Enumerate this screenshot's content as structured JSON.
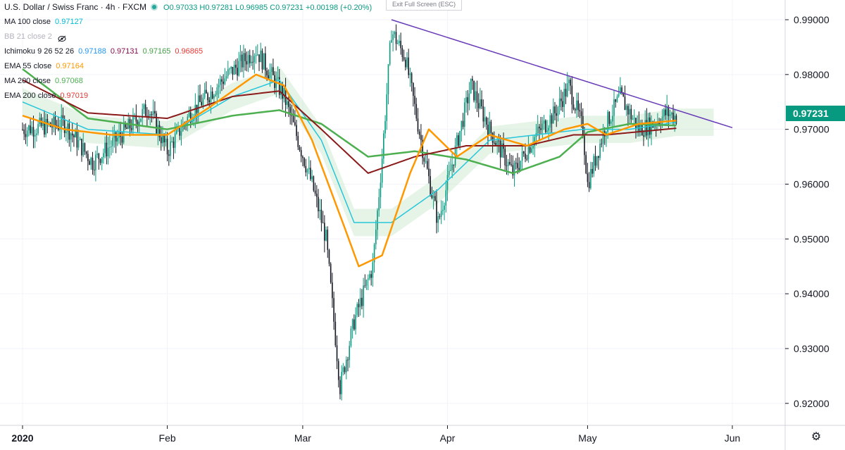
{
  "header": {
    "symbol": "U.S. Dollar / Swiss Franc · 4h · FXCM",
    "open": "O0.97033",
    "high": "H0.97281",
    "low": "L0.96985",
    "close": "C0.97231",
    "change": "+0.00198 (+0.20%)"
  },
  "exit_fullscreen": "Exit Full Screen (ESC)",
  "indicators": [
    {
      "label": "MA 100 close",
      "values": [
        "0.97127"
      ],
      "colors": [
        "#00bcd4"
      ]
    },
    {
      "label": "BB 21 close 2",
      "values": [],
      "colors": []
    },
    {
      "label": "Ichimoku 9 26 52 26",
      "values": [
        "0.97188",
        "0.97131",
        "0.97165",
        "0.96865"
      ],
      "colors": [
        "#2196f3",
        "#880e4f",
        "#43a047",
        "#e53935"
      ]
    },
    {
      "label": "EMA 55 close",
      "values": [
        "0.97164"
      ],
      "colors": [
        "#ff9800"
      ]
    },
    {
      "label": "MA 200 close",
      "values": [
        "0.97068"
      ],
      "colors": [
        "#4caf50"
      ]
    },
    {
      "label": "EMA 200 close",
      "values": [
        "0.97019"
      ],
      "colors": [
        "#e53935"
      ]
    }
  ],
  "last_price": "0.97231",
  "chart_data": {
    "type": "candlestick",
    "y_ticks": [
      "0.99000",
      "0.98000",
      "0.97000",
      "0.96000",
      "0.95000",
      "0.94000",
      "0.93000",
      "0.92000"
    ],
    "ylim": [
      0.9165,
      0.9936
    ],
    "x_ticks": [
      "2020",
      "Feb",
      "Mar",
      "Apr",
      "May",
      "Jun"
    ],
    "colors": {
      "up": "#089981",
      "down": "#131722",
      "ema55": "#ff9800",
      "ma200": "#4caf50",
      "ema200": "#8b1a1a",
      "ma100": "#26c6da",
      "tenkan": "#2196f3",
      "kijun": "#b71c1c",
      "trendline": "#673ab7",
      "cloud_bull": "#c8e6c9",
      "cloud_bear": "#ffcdd2"
    },
    "price_anchors": [
      [
        "2020-01-01",
        0.97
      ],
      [
        "2020-01-10",
        0.971
      ],
      [
        "2020-01-16",
        0.964
      ],
      [
        "2020-01-21",
        0.968
      ],
      [
        "2020-01-28",
        0.974
      ],
      [
        "2020-02-01",
        0.966
      ],
      [
        "2020-02-06",
        0.973
      ],
      [
        "2020-02-14",
        0.98
      ],
      [
        "2020-02-20",
        0.9845
      ],
      [
        "2020-02-26",
        0.976
      ],
      [
        "2020-03-03",
        0.96
      ],
      [
        "2020-03-06",
        0.95
      ],
      [
        "2020-03-09",
        0.923
      ],
      [
        "2020-03-12",
        0.935
      ],
      [
        "2020-03-16",
        0.945
      ],
      [
        "2020-03-18",
        0.965
      ],
      [
        "2020-03-20",
        0.988
      ],
      [
        "2020-03-23",
        0.983
      ],
      [
        "2020-03-27",
        0.965
      ],
      [
        "2020-03-30",
        0.953
      ],
      [
        "2020-04-06",
        0.978
      ],
      [
        "2020-04-10",
        0.97
      ],
      [
        "2020-04-15",
        0.962
      ],
      [
        "2020-04-20",
        0.969
      ],
      [
        "2020-04-24",
        0.973
      ],
      [
        "2020-04-27",
        0.978
      ],
      [
        "2020-04-30",
        0.97
      ],
      [
        "2020-05-01",
        0.96
      ],
      [
        "2020-05-05",
        0.971
      ],
      [
        "2020-05-08",
        0.976
      ],
      [
        "2020-05-12",
        0.97
      ],
      [
        "2020-05-15",
        0.971
      ],
      [
        "2020-05-18",
        0.973
      ],
      [
        "2020-05-20",
        0.9723
      ]
    ],
    "ema55": [
      [
        "2020-01-01",
        0.9725
      ],
      [
        "2020-01-10",
        0.97
      ],
      [
        "2020-01-20",
        0.969
      ],
      [
        "2020-02-01",
        0.969
      ],
      [
        "2020-02-10",
        0.974
      ],
      [
        "2020-02-20",
        0.98
      ],
      [
        "2020-02-26",
        0.978
      ],
      [
        "2020-03-03",
        0.968
      ],
      [
        "2020-03-10",
        0.952
      ],
      [
        "2020-03-13",
        0.945
      ],
      [
        "2020-03-18",
        0.947
      ],
      [
        "2020-03-24",
        0.962
      ],
      [
        "2020-03-28",
        0.97
      ],
      [
        "2020-04-03",
        0.965
      ],
      [
        "2020-04-10",
        0.969
      ],
      [
        "2020-04-18",
        0.967
      ],
      [
        "2020-04-26",
        0.97
      ],
      [
        "2020-05-01",
        0.971
      ],
      [
        "2020-05-05",
        0.969
      ],
      [
        "2020-05-12",
        0.971
      ],
      [
        "2020-05-20",
        0.9716
      ]
    ],
    "ma200": [
      [
        "2020-01-01",
        0.981
      ],
      [
        "2020-01-15",
        0.972
      ],
      [
        "2020-02-01",
        0.97
      ],
      [
        "2020-02-15",
        0.9725
      ],
      [
        "2020-02-25",
        0.9735
      ],
      [
        "2020-03-05",
        0.971
      ],
      [
        "2020-03-15",
        0.965
      ],
      [
        "2020-03-25",
        0.966
      ],
      [
        "2020-04-05",
        0.9645
      ],
      [
        "2020-04-15",
        0.962
      ],
      [
        "2020-04-25",
        0.965
      ],
      [
        "2020-05-01",
        0.9695
      ],
      [
        "2020-05-10",
        0.971
      ],
      [
        "2020-05-20",
        0.9707
      ]
    ],
    "ema200": [
      [
        "2020-01-01",
        0.979
      ],
      [
        "2020-01-15",
        0.973
      ],
      [
        "2020-02-01",
        0.972
      ],
      [
        "2020-02-15",
        0.976
      ],
      [
        "2020-02-25",
        0.977
      ],
      [
        "2020-03-05",
        0.97
      ],
      [
        "2020-03-15",
        0.962
      ],
      [
        "2020-03-25",
        0.965
      ],
      [
        "2020-04-05",
        0.967
      ],
      [
        "2020-04-18",
        0.967
      ],
      [
        "2020-04-28",
        0.969
      ],
      [
        "2020-05-05",
        0.969
      ],
      [
        "2020-05-20",
        0.9702
      ]
    ],
    "ma100": [
      [
        "2020-01-01",
        0.975
      ],
      [
        "2020-01-15",
        0.97
      ],
      [
        "2020-02-01",
        0.969
      ],
      [
        "2020-02-15",
        0.976
      ],
      [
        "2020-02-25",
        0.979
      ],
      [
        "2020-03-05",
        0.968
      ],
      [
        "2020-03-12",
        0.953
      ],
      [
        "2020-03-20",
        0.953
      ],
      [
        "2020-03-30",
        0.959
      ],
      [
        "2020-04-10",
        0.968
      ],
      [
        "2020-04-20",
        0.969
      ],
      [
        "2020-04-30",
        0.97
      ],
      [
        "2020-05-10",
        0.97
      ],
      [
        "2020-05-20",
        0.9713
      ]
    ],
    "trendline": [
      [
        "2020-03-20",
        0.99
      ],
      [
        "2020-06-01",
        0.9703
      ]
    ]
  }
}
